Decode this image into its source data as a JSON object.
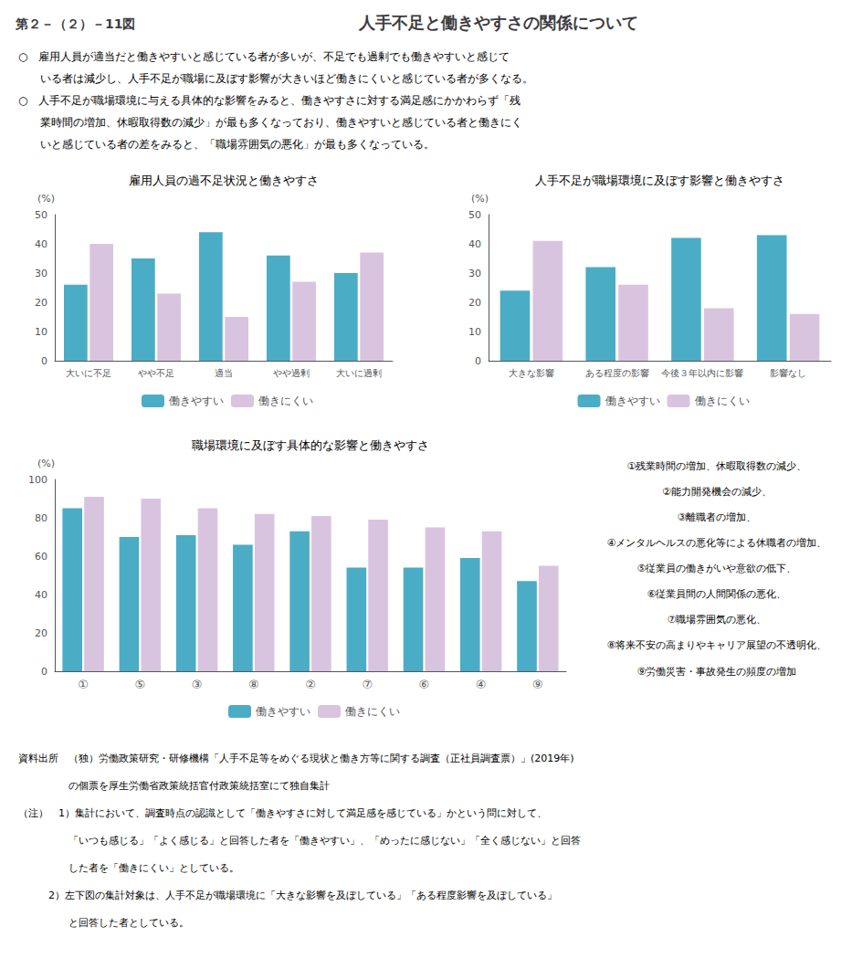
{
  "title": "人手不足と働きやすさの関係について",
  "subtitle": "第２－（２）－11図",
  "summary": [
    "○　雇用人員が適当だと働きやすいと感じている者が多いが、不足でも過剰でも働きやすいと感じて",
    "　　いる者は減少し、人手不足が職場に及ぼす影響が大きいほど働きにくいと感じている者が多くなる。",
    "○　人手不足が職場環境に与える具体的な影響をみると、働きやすさに対する満足感にかかわらず「残",
    "　　業時間の増加、休暇取得数の減少」が最も多くなっており、働きやすいと感じている者と働きにく",
    "　　いと感じている者の差をみると、「職場雰囲気の悪化」が最も多くなっている。"
  ],
  "notes": [
    "資料出所　（独）労働政策研究・研修機構「人手不足等をめぐる現状と働き方等に関する調査（正社員調査票）」(2019年)",
    "　　　　　の個票を厚生労働省政策統括官付政策統括室にて独自集計",
    "（注）　1）集計において、調査時点の認識として「働きやすさに対して満足感を感じている」かという問に対して、",
    "　　　　　「いつも感じる」「よく感じる」と回答した者を「働きやすい」、「めったに感じない」「全く感じない」と回答",
    "　　　　　した者を「働きにくい」としている。",
    "　　　2）左下図の集計対象は、人手不足が職場環境に「大きな影響を及ぼしている」「ある程度影響を及ぼしている」",
    "　　　　　と回答した者としている。"
  ],
  "chart_data": [
    {
      "type": "bar",
      "title": "雇用人員の過不足状況と働きやすさ",
      "ylabel": "(%)",
      "categories": [
        "大いに不足",
        "やや不足",
        "適当",
        "やや過剰",
        "大いに過剰"
      ],
      "series": [
        {
          "name": "働きやすい",
          "color": "#4bacc6",
          "values": [
            26,
            35,
            44,
            36,
            30
          ]
        },
        {
          "name": "働きにくい",
          "color": "#d9c4e0",
          "values": [
            40,
            23,
            15,
            27,
            37
          ]
        }
      ],
      "ylim": [
        0,
        50
      ],
      "yticks": [
        0,
        10,
        20,
        30,
        40,
        50
      ],
      "grid": false,
      "legend": "bottom",
      "data_labels": false
    },
    {
      "type": "bar",
      "title": "人手不足が職場環境に及ぼす影響と働きやすさ",
      "ylabel": "(%)",
      "categories": [
        "大きな影響",
        "ある程度の影響",
        "今後３年以内に影響",
        "影響なし"
      ],
      "series": [
        {
          "name": "働きやすい",
          "color": "#4bacc6",
          "values": [
            24,
            32,
            42,
            43
          ]
        },
        {
          "name": "働きにくい",
          "color": "#d9c4e0",
          "values": [
            41,
            26,
            18,
            16
          ]
        }
      ],
      "ylim": [
        0,
        50
      ],
      "yticks": [
        0,
        10,
        20,
        30,
        40,
        50
      ],
      "grid": false,
      "legend": "bottom",
      "data_labels": false
    },
    {
      "type": "bar",
      "title": "職場環境に及ぼす具体的な影響と働きやすさ",
      "ylabel": "(%)",
      "categories": [
        "①",
        "⑤",
        "③",
        "⑧",
        "②",
        "⑦",
        "⑥",
        "④",
        "⑨"
      ],
      "series": [
        {
          "name": "働きやすい",
          "color": "#4bacc6",
          "values": [
            85,
            70,
            71,
            66,
            73,
            54,
            54,
            59,
            47
          ]
        },
        {
          "name": "働きにくい",
          "color": "#d9c4e0",
          "values": [
            91,
            90,
            85,
            82,
            81,
            79,
            75,
            73,
            55
          ]
        }
      ],
      "ylim": [
        0,
        100
      ],
      "yticks": [
        0,
        20,
        40,
        60,
        80,
        100
      ],
      "grid": false,
      "legend": "bottom",
      "data_labels": false,
      "annotations": [
        "①残業時間の増加、休暇取得数の減少、",
        "②能力開発機会の減少、",
        "③離職者の増加、",
        "④メンタルヘルスの悪化等による休職者の増加、",
        "⑤従業員の働きがいや意欲の低下、",
        "⑥従業員間の人間関係の悪化、",
        "⑦職場雰囲気の悪化、",
        "⑧将来不安の高まりやキャリア展望の不透明化、",
        "⑨労働災害・事故発生の頻度の増加"
      ]
    }
  ]
}
